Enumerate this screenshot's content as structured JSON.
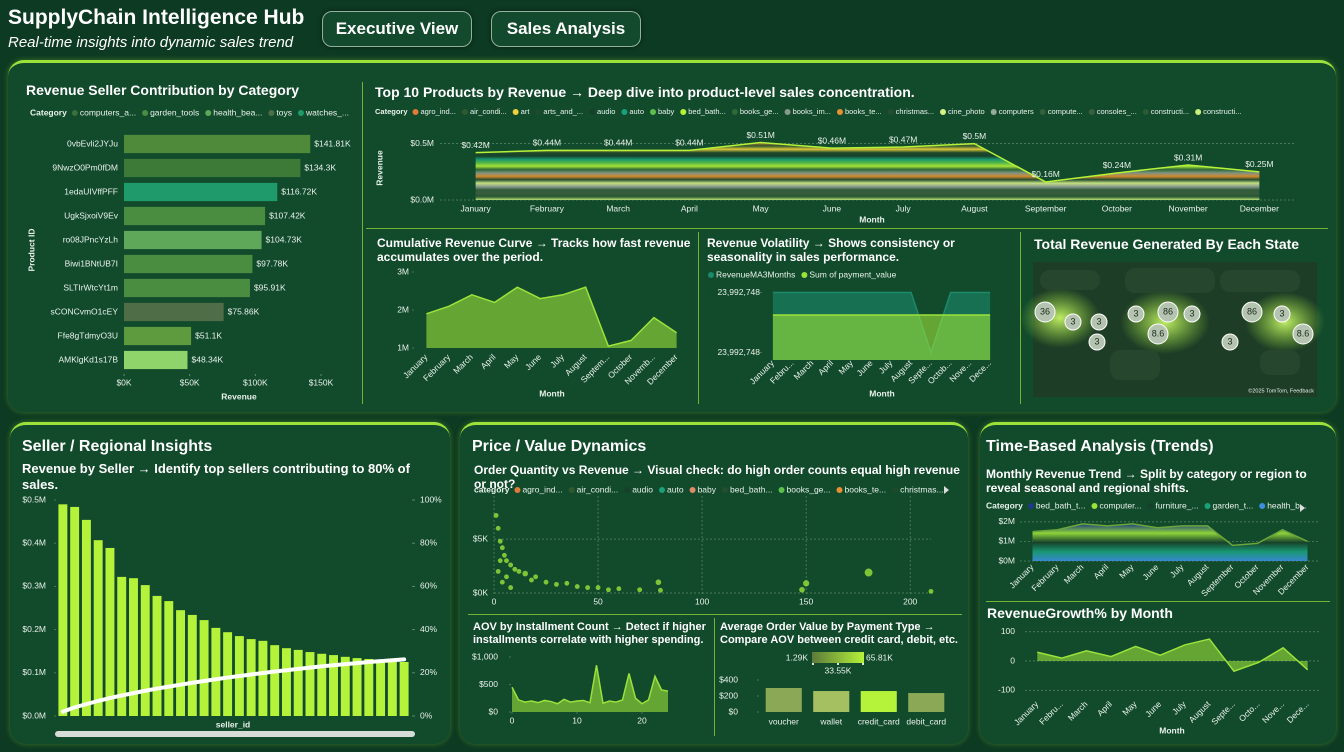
{
  "header": {
    "title": "SupplyChain Intelligence Hub",
    "subtitle": "Real-time insights into dynamic sales trend",
    "buttons": [
      "Executive View",
      "Sales Analysis"
    ]
  },
  "panels": [
    "Seller / Regional Insights",
    "Price / Value Dynamics",
    "Time-Based Analysis (Trends)"
  ],
  "chart_data": [
    {
      "type": "hbar",
      "title": "Revenue Seller Contribution by Category",
      "xlabel": "Revenue",
      "ylabel": "Product ID",
      "legend_title": "Category",
      "legend": [
        {
          "name": "computers_a...",
          "color": "#3a6e3a"
        },
        {
          "name": "garden_tools",
          "color": "#4a8d40"
        },
        {
          "name": "health_bea...",
          "color": "#5fa85a"
        },
        {
          "name": "toys",
          "color": "#4f6e48"
        },
        {
          "name": "watches_...",
          "color": "#1f9a6a"
        }
      ],
      "categories": [
        "0vbEvli2JYJu",
        "9NwzO0Pm0fDM",
        "1edaUIVffPFF",
        "UgkSjxoiV9Ev",
        "ro08JPncYzLh",
        "Biwi1BNtUB7I",
        "SLTIrWtcYt1m",
        "sCONCvmO1cEY",
        "Ffe8gTdmyO3U",
        "AMKlgKd1s17B"
      ],
      "values": [
        141810,
        134300,
        116720,
        107420,
        104730,
        97780,
        95910,
        75860,
        51100,
        48340
      ],
      "value_labels": [
        "$141.81K",
        "$134.3K",
        "$116.72K",
        "$107.42K",
        "$104.73K",
        "$97.78K",
        "$95.91K",
        "$75.86K",
        "$51.1K",
        "$48.34K"
      ],
      "colors": [
        "#4f8a3a",
        "#3d7a38",
        "#1f9a6a",
        "#4a8d40",
        "#5fa85a",
        "#4a8d40",
        "#4a8d40",
        "#4f6e48",
        "#5e9a3e",
        "#8fd46a"
      ],
      "xlim": [
        0,
        150000
      ],
      "xticks": [
        {
          "value": 0,
          "label": "$0K"
        },
        {
          "value": 50000,
          "label": "$50K"
        },
        {
          "value": 100000,
          "label": "$100K"
        },
        {
          "value": 150000,
          "label": "$150K"
        }
      ]
    },
    {
      "type": "area",
      "title": "Top 10 Products by Revenue → Deep dive into product-level sales concentration.",
      "xlabel": "Month",
      "ylabel": "Revenue",
      "legend_title": "Category",
      "legend": [
        {
          "name": "agro_ind...",
          "color": "#e07b39"
        },
        {
          "name": "air_condi...",
          "color": "#2f5a2f"
        },
        {
          "name": "art",
          "color": "#f2d23a"
        },
        {
          "name": "arts_and_...",
          "color": "#1e4a2a"
        },
        {
          "name": "audio",
          "color": "#17402a"
        },
        {
          "name": "auto",
          "color": "#1aa07a"
        },
        {
          "name": "baby",
          "color": "#5cc04a"
        },
        {
          "name": "bed_bath...",
          "color": "#b5f23a"
        },
        {
          "name": "books_ge...",
          "color": "#2e6a35"
        },
        {
          "name": "books_im...",
          "color": "#8a9a8a"
        },
        {
          "name": "books_te...",
          "color": "#e8902f"
        },
        {
          "name": "christmas...",
          "color": "#264d30"
        },
        {
          "name": "cine_photo",
          "color": "#d6f08a"
        },
        {
          "name": "computers",
          "color": "#9aa89a"
        },
        {
          "name": "compute...",
          "color": "#355e3b"
        },
        {
          "name": "consoles_...",
          "color": "#3b5e40"
        },
        {
          "name": "constructi...",
          "color": "#2b5a35"
        },
        {
          "name": "constructi...",
          "color": "#c8f07a"
        }
      ],
      "categories": [
        "January",
        "February",
        "March",
        "April",
        "May",
        "June",
        "July",
        "August",
        "September",
        "October",
        "November",
        "December"
      ],
      "values": [
        420000,
        440000,
        440000,
        440000,
        510000,
        460000,
        470000,
        500000,
        160000,
        240000,
        310000,
        250000
      ],
      "value_labels": [
        "$0.42M",
        "$0.44M",
        "$0.44M",
        "$0.44M",
        "$0.51M",
        "$0.46M",
        "$0.47M",
        "$0.5M",
        "$0.16M",
        "$0.24M",
        "$0.31M",
        "$0.25M"
      ],
      "color": "#b5f23a",
      "ylim": [
        0,
        550000
      ],
      "yticks": [
        {
          "value": 0,
          "label": "$0.0M"
        },
        {
          "value": 500000,
          "label": "$0.5M"
        }
      ],
      "grid": true
    },
    {
      "type": "area",
      "title": "Cumulative Revenue Curve → Tracks how fast revenue accumulates over the period.",
      "xlabel": "Month",
      "categories": [
        "January",
        "February",
        "March",
        "April",
        "May",
        "June",
        "July",
        "August",
        "Septem...",
        "October",
        "Novemb...",
        "December"
      ],
      "values": [
        1900000,
        2100000,
        2400000,
        2200000,
        2600000,
        2300000,
        2400000,
        2600000,
        1050000,
        1200000,
        1800000,
        1400000
      ],
      "color": "#9be23b",
      "ylim": [
        1000000,
        3000000
      ],
      "yticks": [
        {
          "value": 1000000,
          "label": "1M"
        },
        {
          "value": 2000000,
          "label": "2M"
        },
        {
          "value": 3000000,
          "label": "3M"
        }
      ]
    },
    {
      "type": "area",
      "title": "Revenue Volatility → Shows consistency or seasonality in sales performance.",
      "xlabel": "Month",
      "categories": [
        "January",
        "Febru...",
        "March",
        "April",
        "May",
        "June",
        "July",
        "August",
        "Septe...",
        "Octob...",
        "Nove...",
        "Dece..."
      ],
      "series": [
        {
          "name": "RevenueMA3Months",
          "color": "#1a8a6a",
          "values": [
            23992748.4,
            23992748.4,
            23992748.4,
            23992748.4,
            23992748.4,
            23992748.4,
            23992748.4,
            23992748.4,
            23992747.6,
            23992748.4,
            23992748.4,
            23992748.4
          ]
        },
        {
          "name": "Sum of payment_value",
          "color": "#9be23b",
          "values": [
            23992748.1,
            23992748.1,
            23992748.1,
            23992748.1,
            23992748.1,
            23992748.1,
            23992748.1,
            23992748.1,
            23992748.1,
            23992748.1,
            23992748.1,
            23992748.1
          ]
        }
      ],
      "ylim": [
        23992747.5,
        23992748.5
      ],
      "yticks": [
        {
          "value": 23992747.6,
          "label": "23,992,748"
        },
        {
          "value": 23992748.4,
          "label": "23,992,748"
        }
      ]
    },
    {
      "type": "map",
      "title": "Total Revenue Generated By Each State",
      "bubble_labels": [
        "36",
        "3",
        "3",
        "3",
        "3",
        "86",
        "8.6",
        "3",
        "3",
        "86",
        "3",
        "8.6"
      ],
      "attribution": "©2025 TomTom, Feedback"
    },
    {
      "type": "bar",
      "title": "Revenue by Seller → Identify top sellers contributing to 80% of sales.",
      "xlabel": "seller_id",
      "categories": [
        null,
        null,
        null,
        null,
        null,
        null,
        null,
        null,
        null,
        null,
        null,
        null,
        null,
        null,
        null,
        null,
        null,
        null,
        null,
        null,
        null,
        null,
        null,
        null,
        null,
        null,
        null,
        null,
        null,
        null
      ],
      "series": [
        {
          "type": "bar",
          "color": "#b5f23a",
          "values": [
            490000,
            484000,
            454000,
            407000,
            389000,
            322000,
            319000,
            303000,
            278000,
            266000,
            245000,
            234000,
            222000,
            204000,
            194000,
            185000,
            178000,
            174000,
            164000,
            157000,
            153000,
            148000,
            144000,
            141000,
            137000,
            134000,
            132000,
            130000,
            127000,
            125000
          ]
        },
        {
          "type": "line",
          "axis": "y2",
          "color": "#ffffff",
          "values": [
            2,
            4,
            5.5,
            7,
            8.3,
            9.5,
            10.6,
            11.7,
            12.7,
            13.6,
            14.5,
            15.4,
            16.2,
            17,
            17.8,
            18.5,
            19.2,
            19.9,
            20.6,
            21.2,
            21.8,
            22.4,
            23,
            23.5,
            24,
            24.5,
            25,
            25.4,
            25.8,
            26.2
          ]
        }
      ],
      "ylim": [
        0,
        500000
      ],
      "yticks": [
        {
          "value": 0,
          "label": "$0.0M"
        },
        {
          "value": 100000,
          "label": "$0.1M"
        },
        {
          "value": 200000,
          "label": "$0.2M"
        },
        {
          "value": 300000,
          "label": "$0.3M"
        },
        {
          "value": 400000,
          "label": "$0.4M"
        },
        {
          "value": 500000,
          "label": "$0.5M"
        }
      ],
      "y2lim": [
        0,
        100
      ],
      "y2ticks": [
        {
          "value": 0,
          "label": "0%"
        },
        {
          "value": 20,
          "label": "20%"
        },
        {
          "value": 40,
          "label": "40%"
        },
        {
          "value": 60,
          "label": "60%"
        },
        {
          "value": 80,
          "label": "80%"
        },
        {
          "value": 100,
          "label": "100%"
        }
      ]
    },
    {
      "type": "scatter",
      "title": "Order Quantity vs Revenue → Visual check: do high order counts equal high revenue or not?",
      "legend_title": "category",
      "legend": [
        {
          "name": "agro_ind...",
          "color": "#e07b39"
        },
        {
          "name": "air_condi...",
          "color": "#2f5a2f"
        },
        {
          "name": "audio",
          "color": "#17402a"
        },
        {
          "name": "auto",
          "color": "#1aa07a"
        },
        {
          "name": "baby",
          "color": "#e08a6a"
        },
        {
          "name": "bed_bath...",
          "color": "#264d30"
        },
        {
          "name": "books_ge...",
          "color": "#5cc04a"
        },
        {
          "name": "books_te...",
          "color": "#e8902f"
        },
        {
          "name": "christmas...",
          "color": "#1e4a2a"
        }
      ],
      "color": "#9be23b",
      "x": [
        1,
        2,
        3,
        4,
        5,
        6,
        8,
        10,
        12,
        15,
        18,
        20,
        25,
        30,
        35,
        40,
        45,
        50,
        55,
        60,
        70,
        80,
        2,
        4,
        6,
        3,
        8,
        79,
        148,
        150,
        180,
        210
      ],
      "y": [
        7200,
        6000,
        4800,
        4200,
        3500,
        3000,
        2600,
        2200,
        2000,
        1800,
        1200,
        1500,
        1000,
        800,
        900,
        600,
        500,
        500,
        300,
        400,
        300,
        250,
        2000,
        1000,
        1500,
        3000,
        500,
        1000,
        300,
        900,
        1900,
        150
      ],
      "sizes": [
        3,
        3,
        3,
        3,
        3,
        3,
        3,
        3,
        3,
        4,
        3,
        3,
        3,
        3,
        3,
        3,
        3,
        3,
        3,
        3,
        3,
        3,
        3,
        3,
        3,
        3,
        3,
        4,
        4,
        5,
        8,
        3
      ],
      "xlim": [
        0,
        210
      ],
      "xticks": [
        0,
        50,
        100,
        150,
        200
      ],
      "ylim": [
        0,
        9000
      ],
      "yticks": [
        {
          "value": 0,
          "label": "$0K"
        },
        {
          "value": 5000,
          "label": "$5K"
        }
      ],
      "grid": true
    },
    {
      "type": "area",
      "title": "AOV by Installment Count → Detect if higher installments correlate with higher spending.",
      "x": [
        0,
        1,
        2,
        3,
        4,
        5,
        6,
        7,
        8,
        9,
        10,
        11,
        12,
        13,
        14,
        15,
        16,
        17,
        18,
        19,
        20,
        21,
        22,
        23,
        24
      ],
      "values": [
        450,
        220,
        180,
        200,
        170,
        210,
        190,
        150,
        230,
        180,
        200,
        210,
        170,
        850,
        160,
        200,
        180,
        220,
        700,
        250,
        150,
        220,
        650,
        400,
        380
      ],
      "color": "#9be23b",
      "xlim": [
        0,
        24
      ],
      "xticks": [
        0,
        10,
        20
      ],
      "ylim": [
        0,
        1000
      ],
      "yticks": [
        {
          "value": 0,
          "label": "$0"
        },
        {
          "value": 500,
          "label": "$500"
        },
        {
          "value": 1000,
          "label": "$1,000"
        }
      ]
    },
    {
      "type": "bar",
      "title": "Average Order Value by Payment Type → Compare AOV between credit card, debit, etc.",
      "color_scale": [
        {
          "value": 1290,
          "label": "1.29K"
        },
        {
          "value": 33550,
          "label": "33.55K"
        },
        {
          "value": 65810,
          "label": "65.81K"
        }
      ],
      "categories": [
        "voucher",
        "wallet",
        "credit_card",
        "debit_card"
      ],
      "values": [
        300,
        262,
        262,
        237
      ],
      "colors": [
        "#8aa856",
        "#a4c060",
        "#b5f23a",
        "#8aa856"
      ],
      "ylim": [
        0,
        450
      ],
      "yticks": [
        {
          "value": 0,
          "label": "$0"
        },
        {
          "value": 200,
          "label": "$200"
        },
        {
          "value": 400,
          "label": "$400"
        }
      ]
    },
    {
      "type": "area",
      "title": "Monthly Revenue Trend → Split by category or region to reveal seasonal and regional shifts.",
      "legend_title": "Category",
      "legend": [
        {
          "name": "bed_bath_t...",
          "color": "#1e3a8a"
        },
        {
          "name": "computer...",
          "color": "#9be23b"
        },
        {
          "name": "furniture_...",
          "color": "#17402a"
        },
        {
          "name": "garden_t...",
          "color": "#1aa07a"
        },
        {
          "name": "health_b...",
          "color": "#3b8ee0"
        }
      ],
      "categories": [
        "January",
        "February",
        "March",
        "April",
        "May",
        "June",
        "July",
        "August",
        "September",
        "October",
        "November",
        "December"
      ],
      "values": [
        1500000,
        1600000,
        1900000,
        1800000,
        1900000,
        1700000,
        1800000,
        1800000,
        800000,
        900000,
        1600000,
        1000000
      ],
      "color": "#6aa63a",
      "ylim": [
        0,
        2200000
      ],
      "yticks": [
        {
          "value": 0,
          "label": "$0M"
        },
        {
          "value": 1000000,
          "label": "$1M"
        },
        {
          "value": 2000000,
          "label": "$2M"
        }
      ],
      "grid": true
    },
    {
      "type": "area",
      "title": "RevenueGrowth% by Month",
      "xlabel": "Month",
      "categories": [
        "January",
        "Febru...",
        "March",
        "April",
        "May",
        "June",
        "July",
        "August",
        "Septe...",
        "Octo...",
        "Nove...",
        "Dece..."
      ],
      "values": [
        30,
        10,
        35,
        15,
        50,
        20,
        55,
        75,
        -35,
        -5,
        45,
        -30
      ],
      "color": "#9be23b",
      "ylim": [
        -130,
        130
      ],
      "yticks": [
        -100,
        0,
        100
      ],
      "grid": true
    }
  ]
}
